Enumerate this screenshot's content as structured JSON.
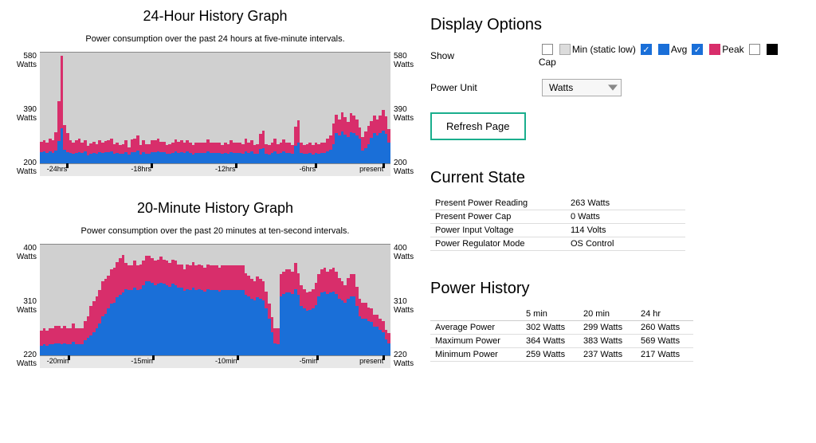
{
  "colors": {
    "avg": "#1a6fd8",
    "peak": "#d82e6b",
    "min": "#dcdcdc",
    "cap": "#000000",
    "chart_bg": "#d0d0d0",
    "xaxis_bg": "#e8e8e8"
  },
  "chart24": {
    "title": "24-Hour History Graph",
    "subtitle": "Power consumption over the past 24 hours at five-minute intervals.",
    "ymax": 580,
    "ymid": 390,
    "ymin": 200,
    "y_top_label": "580 Watts",
    "y_mid_label": "390 Watts",
    "y_bot_label": "200 Watts",
    "x_ticks": [
      {
        "pos": 2,
        "label": "-24hrs"
      },
      {
        "pos": 26,
        "label": "-18hrs"
      },
      {
        "pos": 50,
        "label": "-12hrs"
      },
      {
        "pos": 74,
        "label": "-6hrs"
      },
      {
        "pos": 98,
        "label": "present"
      }
    ],
    "avg_series": [
      238,
      240,
      236,
      241,
      236,
      244,
      276,
      321,
      246,
      239,
      236,
      233,
      236,
      239,
      236,
      240,
      228,
      232,
      236,
      234,
      238,
      236,
      238,
      238,
      241,
      234,
      236,
      233,
      234,
      238,
      229,
      238,
      239,
      244,
      231,
      238,
      234,
      234,
      238,
      238,
      241,
      237,
      237,
      232,
      234,
      236,
      240,
      236,
      238,
      236,
      240,
      236,
      231,
      236,
      236,
      236,
      236,
      240,
      236,
      236,
      236,
      236,
      232,
      236,
      234,
      238,
      236,
      236,
      236,
      234,
      241,
      236,
      240,
      232,
      234,
      248,
      252,
      234,
      231,
      236,
      241,
      234,
      236,
      240,
      236,
      236,
      233,
      261,
      271,
      236,
      232,
      234,
      236,
      231,
      236,
      234,
      236,
      236,
      241,
      246,
      266,
      304,
      296,
      310,
      298,
      290,
      308,
      304,
      296,
      284,
      244,
      252,
      266,
      288,
      304,
      296,
      304,
      312,
      300,
      272
    ],
    "peak_series": [
      274,
      278,
      272,
      286,
      280,
      308,
      412,
      569,
      330,
      304,
      280,
      270,
      278,
      286,
      272,
      280,
      260,
      268,
      274,
      266,
      280,
      270,
      276,
      280,
      286,
      266,
      270,
      262,
      266,
      278,
      256,
      282,
      284,
      296,
      262,
      278,
      266,
      266,
      280,
      278,
      286,
      274,
      274,
      264,
      266,
      272,
      282,
      274,
      278,
      272,
      280,
      272,
      262,
      272,
      272,
      272,
      272,
      282,
      272,
      272,
      272,
      272,
      264,
      272,
      266,
      280,
      272,
      272,
      272,
      266,
      286,
      272,
      280,
      264,
      266,
      300,
      312,
      266,
      262,
      272,
      286,
      266,
      272,
      282,
      272,
      272,
      264,
      326,
      348,
      272,
      264,
      266,
      272,
      262,
      272,
      266,
      272,
      272,
      286,
      296,
      336,
      366,
      350,
      374,
      358,
      342,
      373,
      364,
      350,
      322,
      290,
      310,
      328,
      344,
      364,
      350,
      364,
      383,
      360,
      318
    ]
  },
  "chart20": {
    "title": "20-Minute History Graph",
    "subtitle": "Power consumption over the past 20 minutes at ten-second intervals.",
    "ymax": 400,
    "ymid": 310,
    "ymin": 220,
    "y_top_label": "400 Watts",
    "y_mid_label": "310 Watts",
    "y_bot_label": "220 Watts",
    "x_ticks": [
      {
        "pos": 2,
        "label": "-20min"
      },
      {
        "pos": 26,
        "label": "-15min"
      },
      {
        "pos": 50,
        "label": "-10min"
      },
      {
        "pos": 74,
        "label": "-5min"
      },
      {
        "pos": 98,
        "label": "present"
      }
    ],
    "avg_series": [
      236,
      238,
      236,
      238,
      238,
      240,
      240,
      238,
      240,
      238,
      238,
      242,
      238,
      238,
      238,
      244,
      248,
      252,
      258,
      264,
      272,
      284,
      288,
      296,
      304,
      306,
      314,
      318,
      322,
      328,
      326,
      326,
      330,
      326,
      328,
      334,
      340,
      340,
      338,
      334,
      336,
      338,
      336,
      334,
      332,
      336,
      334,
      330,
      330,
      325,
      328,
      326,
      330,
      326,
      328,
      326,
      324,
      328,
      326,
      326,
      326,
      324,
      326,
      326,
      326,
      326,
      326,
      326,
      326,
      326,
      318,
      316,
      312,
      310,
      314,
      312,
      310,
      296,
      280,
      258,
      240,
      238,
      316,
      320,
      322,
      322,
      320,
      328,
      318,
      300,
      296,
      292,
      294,
      296,
      302,
      316,
      322,
      324,
      320,
      322,
      324,
      320,
      312,
      310,
      306,
      312,
      316,
      316,
      300,
      284,
      280,
      280,
      276,
      274,
      266,
      266,
      262,
      258,
      246,
      240
    ],
    "peak_series": [
      260,
      264,
      260,
      264,
      264,
      268,
      268,
      264,
      268,
      264,
      264,
      272,
      264,
      264,
      264,
      276,
      284,
      300,
      308,
      316,
      326,
      340,
      344,
      350,
      360,
      362,
      372,
      378,
      383,
      370,
      366,
      366,
      374,
      366,
      368,
      374,
      382,
      382,
      378,
      374,
      376,
      380,
      376,
      374,
      370,
      376,
      374,
      368,
      368,
      360,
      368,
      366,
      372,
      366,
      368,
      366,
      362,
      368,
      366,
      366,
      366,
      362,
      366,
      366,
      366,
      366,
      366,
      366,
      366,
      366,
      354,
      350,
      344,
      340,
      348,
      344,
      340,
      324,
      304,
      282,
      264,
      264,
      352,
      356,
      360,
      360,
      356,
      370,
      354,
      334,
      328,
      322,
      324,
      328,
      338,
      352,
      360,
      362,
      356,
      360,
      362,
      356,
      346,
      340,
      334,
      346,
      352,
      352,
      332,
      312,
      306,
      306,
      298,
      296,
      286,
      286,
      280,
      276,
      262,
      256
    ]
  },
  "displayOptions": {
    "title": "Display Options",
    "show_label": "Show",
    "unit_label": "Power Unit",
    "unit_value": "Watts",
    "legend": {
      "min": "Min (static low)",
      "avg": "Avg",
      "peak": "Peak",
      "cap": "Cap"
    },
    "checked": {
      "min": false,
      "avg": true,
      "peak": true,
      "cap": false
    },
    "refresh": "Refresh Page"
  },
  "currentState": {
    "title": "Current State",
    "rows": [
      {
        "label": "Present Power Reading",
        "value": "263 Watts"
      },
      {
        "label": "Present Power Cap",
        "value": "0 Watts"
      },
      {
        "label": "Power Input Voltage",
        "value": "114 Volts"
      },
      {
        "label": "Power Regulator Mode",
        "value": "OS Control"
      }
    ]
  },
  "powerHistory": {
    "title": "Power History",
    "columns": [
      "",
      "5 min",
      "20 min",
      "24 hr"
    ],
    "rows": [
      {
        "label": "Average Power",
        "c1": "302 Watts",
        "c2": "299 Watts",
        "c3": "260 Watts"
      },
      {
        "label": "Maximum Power",
        "c1": "364 Watts",
        "c2": "383 Watts",
        "c3": "569 Watts"
      },
      {
        "label": "Minimum Power",
        "c1": "259 Watts",
        "c2": "237 Watts",
        "c3": "217 Watts"
      }
    ]
  }
}
